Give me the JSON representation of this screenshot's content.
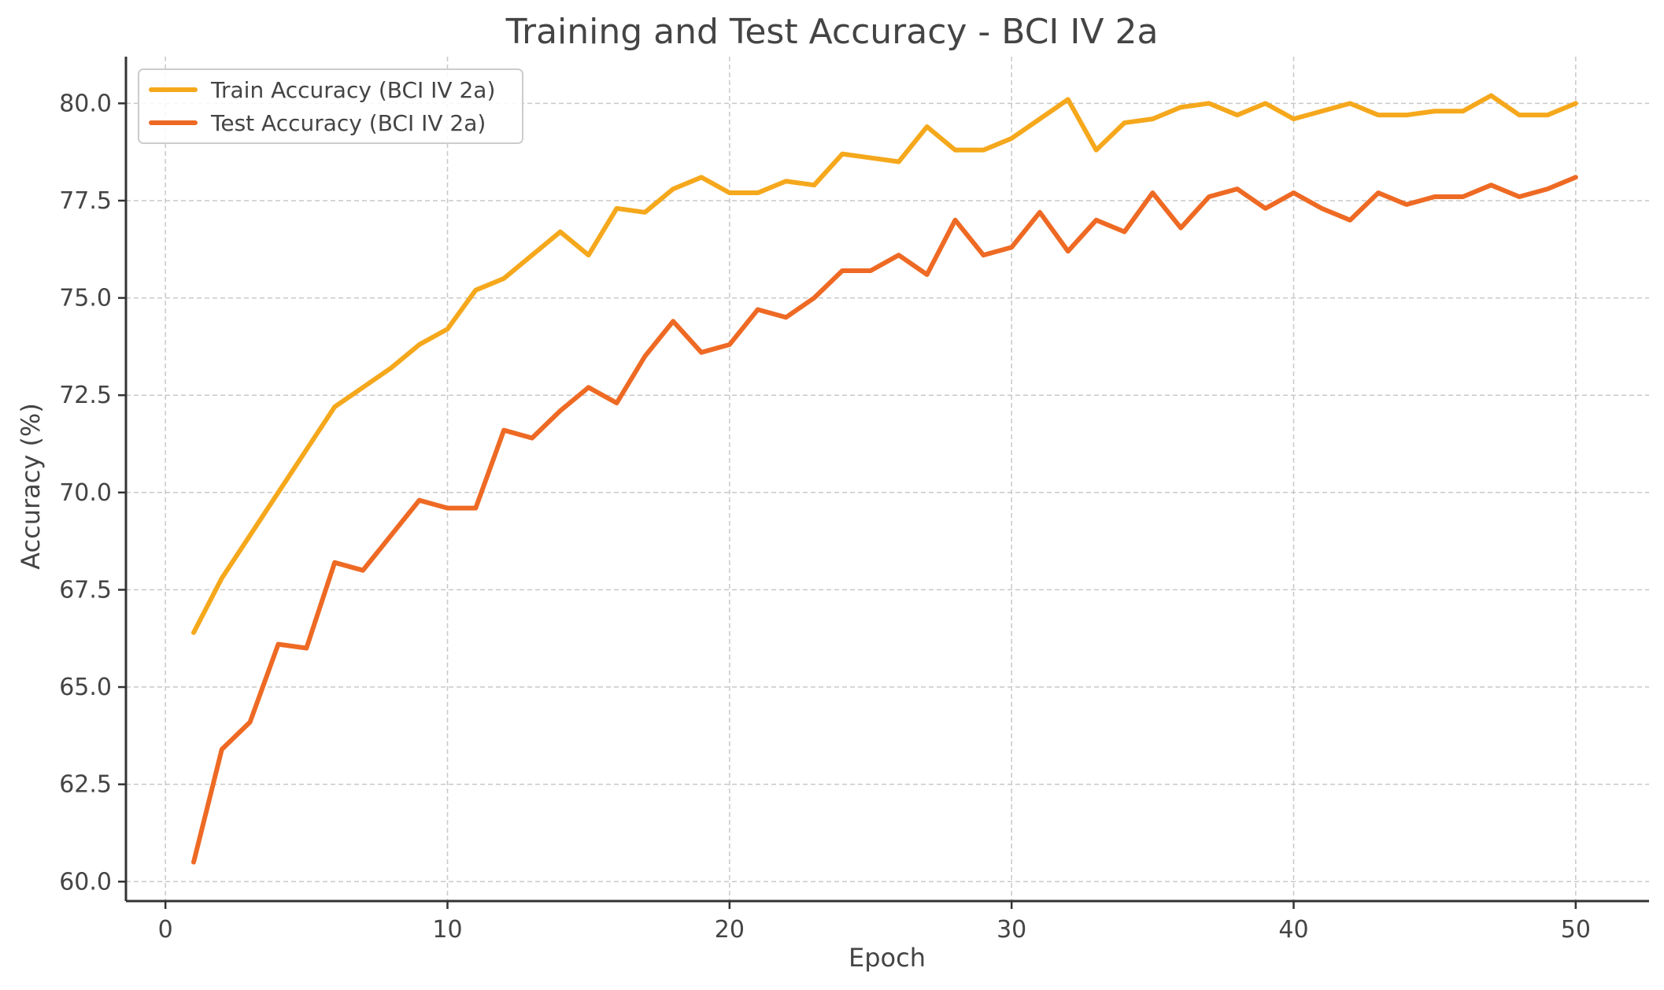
{
  "chart_data": {
    "type": "line",
    "title": "Training and Test Accuracy - BCI IV 2a",
    "xlabel": "Epoch",
    "ylabel": "Accuracy (%)",
    "xlim": [
      -1.4,
      52.6
    ],
    "ylim": [
      59.5,
      81.2
    ],
    "xticks": [
      0,
      10,
      20,
      30,
      40,
      50
    ],
    "yticks": [
      60.0,
      62.5,
      65.0,
      67.5,
      70.0,
      72.5,
      75.0,
      77.5,
      80.0
    ],
    "xtick_labels": [
      "0",
      "10",
      "20",
      "30",
      "40",
      "50"
    ],
    "ytick_labels": [
      "60.0",
      "62.5",
      "65.0",
      "67.5",
      "70.0",
      "72.5",
      "75.0",
      "77.5",
      "80.0"
    ],
    "grid": true,
    "legend_position": "top-left",
    "x": [
      1,
      2,
      3,
      4,
      5,
      6,
      7,
      8,
      9,
      10,
      11,
      12,
      13,
      14,
      15,
      16,
      17,
      18,
      19,
      20,
      21,
      22,
      23,
      24,
      25,
      26,
      27,
      28,
      29,
      30,
      31,
      32,
      33,
      34,
      35,
      36,
      37,
      38,
      39,
      40,
      41,
      42,
      43,
      44,
      45,
      46,
      47,
      48,
      49,
      50
    ],
    "series": [
      {
        "name": "Train Accuracy (BCI IV 2a)",
        "color": "#F5A81C",
        "values": [
          66.4,
          67.8,
          68.9,
          70.0,
          71.1,
          72.2,
          72.7,
          73.2,
          73.8,
          74.2,
          75.2,
          75.5,
          76.1,
          76.7,
          76.1,
          77.3,
          77.2,
          77.8,
          78.1,
          77.7,
          77.7,
          78.0,
          77.9,
          78.7,
          78.6,
          78.5,
          79.4,
          78.8,
          78.8,
          79.1,
          79.6,
          80.1,
          78.8,
          79.5,
          79.6,
          79.9,
          80.0,
          79.7,
          80.0,
          79.6,
          79.8,
          80.0,
          79.7,
          79.7,
          79.8,
          79.8,
          80.2,
          79.7,
          79.7,
          80.0
        ]
      },
      {
        "name": "Test Accuracy (BCI IV 2a)",
        "color": "#EE6A24",
        "values": [
          60.5,
          63.4,
          64.1,
          66.1,
          66.0,
          68.2,
          68.0,
          68.9,
          69.8,
          69.6,
          69.6,
          71.6,
          71.4,
          72.1,
          72.7,
          72.3,
          73.5,
          74.4,
          73.6,
          73.8,
          74.7,
          74.5,
          75.0,
          75.7,
          75.7,
          76.1,
          75.6,
          77.0,
          76.1,
          76.3,
          77.2,
          76.2,
          77.0,
          76.7,
          77.7,
          76.8,
          77.6,
          77.8,
          77.3,
          77.7,
          77.3,
          77.0,
          77.7,
          77.4,
          77.6,
          77.6,
          77.9,
          77.6,
          77.8,
          78.1
        ]
      }
    ]
  }
}
